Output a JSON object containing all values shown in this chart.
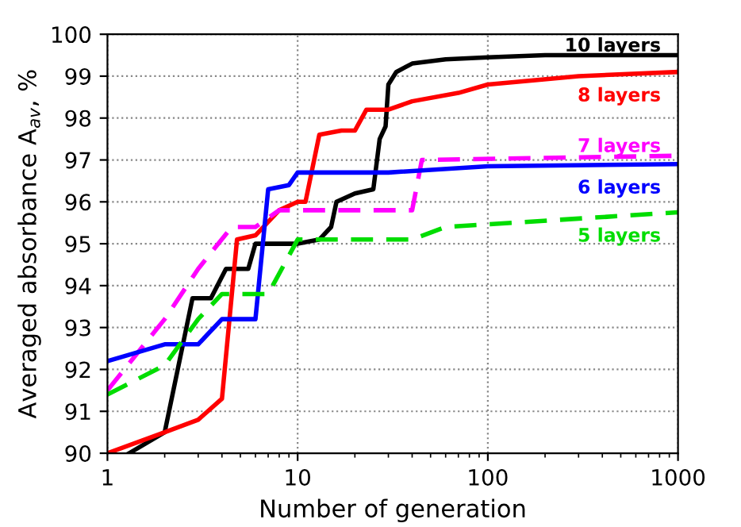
{
  "chart_data": {
    "type": "line",
    "xlabel": "Number of generation",
    "ylabel": "Averaged absorbance A$_{av}$, %",
    "log": "x",
    "grid": true,
    "xlim": [
      1,
      1000
    ],
    "ylim": [
      90,
      100
    ],
    "xticks": [
      1,
      10,
      100,
      1000
    ],
    "yticks": [
      90,
      91,
      92,
      93,
      94,
      95,
      96,
      97,
      98,
      99,
      100
    ],
    "series": [
      {
        "name": "10 layers",
        "color": "#000000",
        "line_style": "solid",
        "x": [
          1.3,
          2,
          2.8,
          3.5,
          4.2,
          5.5,
          6,
          10,
          13,
          15,
          16,
          20,
          25,
          27,
          29,
          30,
          33,
          40,
          60,
          100,
          200,
          1000
        ],
        "values": [
          90,
          90.5,
          93.7,
          93.7,
          94.4,
          94.4,
          95,
          95,
          95.1,
          95.4,
          96.0,
          96.2,
          96.3,
          97.5,
          97.8,
          98.8,
          99.1,
          99.3,
          99.4,
          99.45,
          99.5,
          99.5
        ]
      },
      {
        "name": "8 layers",
        "color": "#ff0000",
        "line_style": "solid",
        "x": [
          1,
          2,
          3,
          4,
          4.8,
          6,
          8,
          10,
          11,
          13,
          17,
          20,
          23,
          30,
          40,
          70,
          100,
          300,
          1000
        ],
        "values": [
          90,
          90.5,
          90.8,
          91.3,
          95.1,
          95.2,
          95.8,
          96,
          96.0,
          97.6,
          97.7,
          97.7,
          98.2,
          98.2,
          98.4,
          98.6,
          98.8,
          99.0,
          99.1
        ]
      },
      {
        "name": "7 layers",
        "color": "#ff00ff",
        "line_style": "dashed",
        "x": [
          1,
          2,
          3,
          4.5,
          6,
          8,
          40,
          45,
          1000
        ],
        "values": [
          91.5,
          93.2,
          94.4,
          95.4,
          95.4,
          95.8,
          95.8,
          97.0,
          97.1
        ]
      },
      {
        "name": "6 layers",
        "color": "#0000ff",
        "line_style": "solid",
        "x": [
          1,
          2,
          3,
          4,
          6,
          7,
          9,
          10,
          30,
          100,
          1000
        ],
        "values": [
          92.2,
          92.6,
          92.6,
          93.2,
          93.2,
          96.3,
          96.4,
          96.7,
          96.7,
          96.85,
          96.9
        ]
      },
      {
        "name": "5 layers",
        "color": "#00dd00",
        "line_style": "dashed",
        "x": [
          1,
          2,
          3,
          4,
          7,
          10,
          40,
          60,
          1000
        ],
        "values": [
          91.4,
          92.1,
          93.2,
          93.8,
          93.8,
          95.1,
          95.1,
          95.4,
          95.75
        ]
      }
    ]
  }
}
